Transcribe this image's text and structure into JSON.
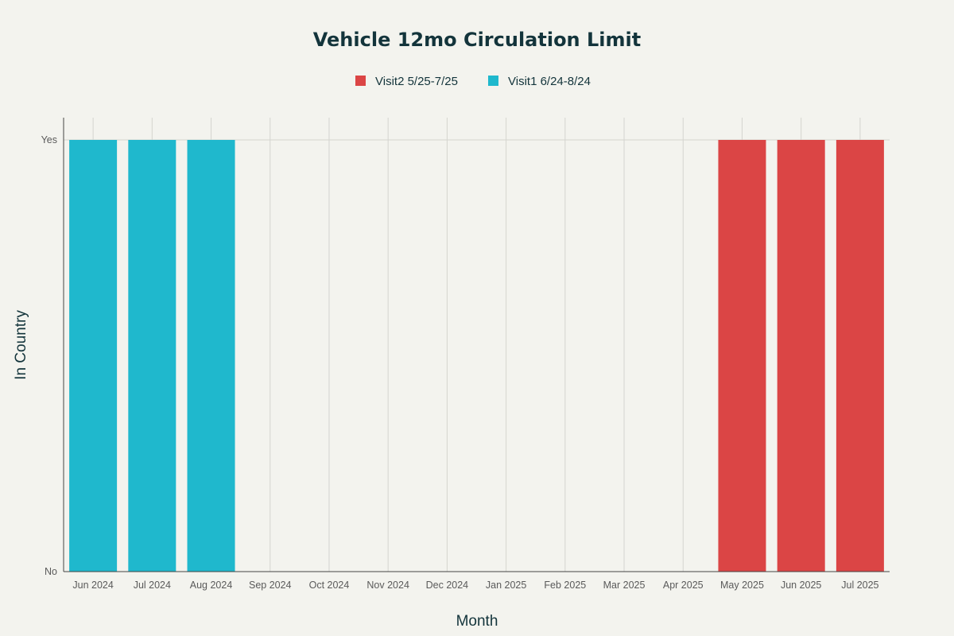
{
  "chart_data": {
    "type": "bar",
    "title": "Vehicle 12mo Circulation Limit",
    "xlabel": "Month",
    "ylabel": "In Country",
    "categories": [
      "Jun 2024",
      "Jul 2024",
      "Aug 2024",
      "Sep 2024",
      "Oct 2024",
      "Nov 2024",
      "Dec 2024",
      "Jan 2025",
      "Feb 2025",
      "Mar 2025",
      "Apr 2025",
      "May 2025",
      "Jun 2025",
      "Jul 2025"
    ],
    "y_ticks": [
      "No",
      "Yes"
    ],
    "ylim": [
      0,
      1
    ],
    "legend_position": "top-center",
    "grid": true,
    "series": [
      {
        "name": "Visit2 5/25-7/25",
        "color": "#db4545",
        "values": [
          0,
          0,
          0,
          0,
          0,
          0,
          0,
          0,
          0,
          0,
          0,
          1,
          1,
          1
        ]
      },
      {
        "name": "Visit1 6/24-8/24",
        "color": "#1fb8cd",
        "values": [
          1,
          1,
          1,
          0,
          0,
          0,
          0,
          0,
          0,
          0,
          0,
          0,
          0,
          0
        ]
      }
    ]
  }
}
